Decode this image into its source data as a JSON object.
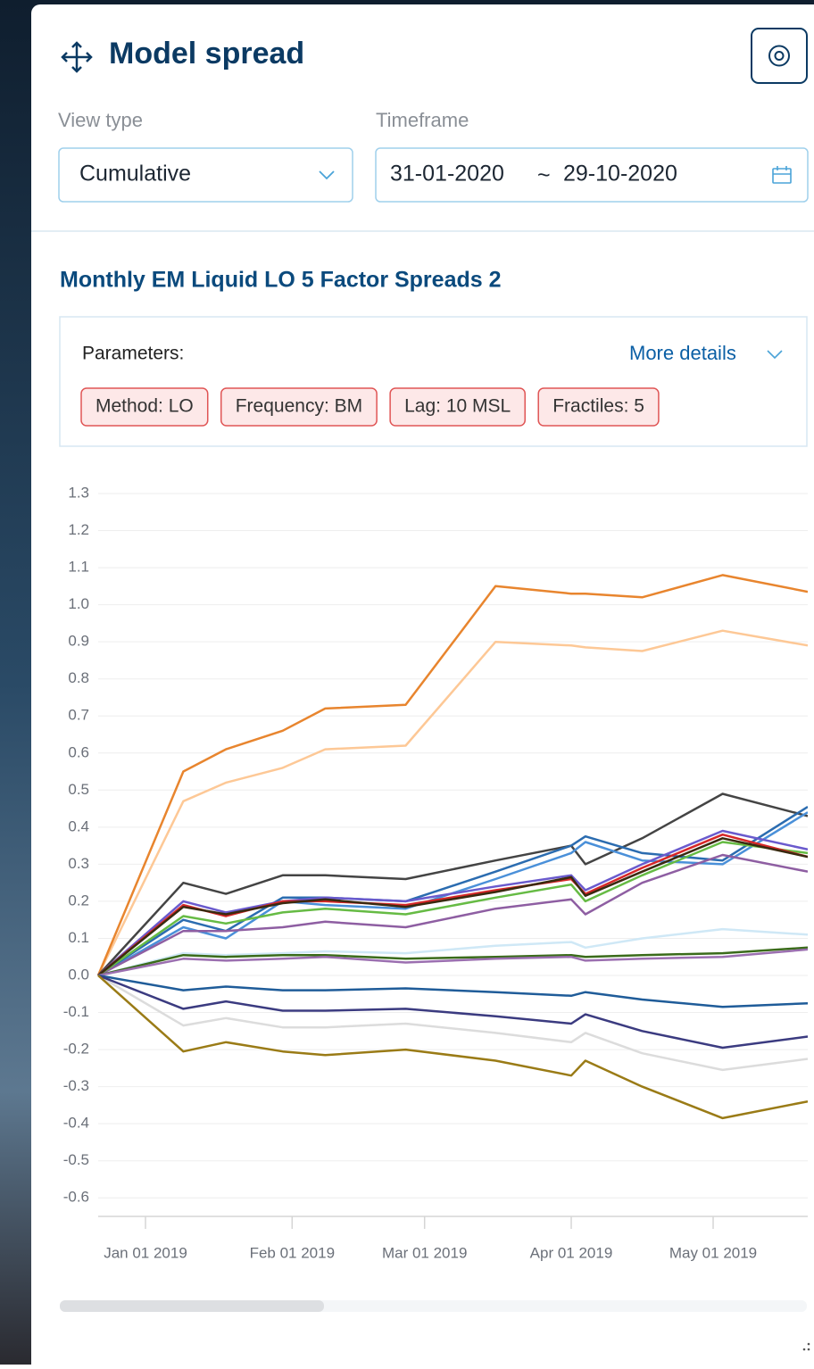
{
  "header": {
    "title": "Model spread"
  },
  "filters": {
    "view_type_label": "View type",
    "view_type_value": "Cumulative",
    "timeframe_label": "Timeframe",
    "start_date": "31-01-2020",
    "separator": "~",
    "end_date": "29-10-2020"
  },
  "parameters": {
    "label": "Parameters:",
    "more_details": "More details",
    "chips": [
      "Method: LO",
      "Frequency: BM",
      "Lag: 10 MSL",
      "Fractiles: 5"
    ]
  },
  "chart_data": {
    "type": "line",
    "title": "Monthly EM Liquid LO 5 Factor Spreads 2",
    "x": [
      "2018-12-22",
      "2019-01-09",
      "2019-01-18",
      "2019-01-30",
      "2019-02-08",
      "2019-02-25",
      "2019-03-16",
      "2019-04-01",
      "2019-04-04",
      "2019-04-16",
      "2019-05-03",
      "2019-05-21"
    ],
    "xlim": [
      "2018-12-22",
      "2019-05-21"
    ],
    "xticks": [
      {
        "value": "2019-01-01",
        "label": "Jan 01 2019"
      },
      {
        "value": "2019-02-01",
        "label": "Feb 01 2019"
      },
      {
        "value": "2019-03-01",
        "label": "Mar 01 2019"
      },
      {
        "value": "2019-04-01",
        "label": "Apr 01 2019"
      },
      {
        "value": "2019-05-01",
        "label": "May 01 2019"
      }
    ],
    "ylim": [
      -0.65,
      1.3
    ],
    "yticks": [
      1.3,
      1.2,
      1.1,
      {
        "value": 1,
        "label": "1.0"
      },
      0.9,
      0.8,
      0.7,
      0.6,
      0.5,
      0.4,
      0.3,
      0.2,
      0.1,
      {
        "value": 0,
        "label": "0.0"
      },
      -0.1,
      -0.2,
      -0.3,
      -0.4,
      -0.5,
      -0.6
    ],
    "grid": true,
    "series": [
      {
        "color": "#dcdcdc",
        "values": [
          0,
          -0.135,
          -0.115,
          -0.14,
          -0.14,
          -0.13,
          -0.155,
          -0.18,
          -0.155,
          -0.21,
          -0.255,
          -0.225
        ]
      },
      {
        "color": "#cfe8f6",
        "values": [
          0,
          0.06,
          0.055,
          0.06,
          0.065,
          0.06,
          0.08,
          0.09,
          0.075,
          0.1,
          0.125,
          0.11
        ]
      },
      {
        "color": "#fdc896",
        "values": [
          0,
          0.47,
          0.52,
          0.56,
          0.61,
          0.62,
          0.9,
          0.89,
          0.885,
          0.875,
          0.93,
          0.89
        ]
      },
      {
        "color": "#e8852e",
        "values": [
          0,
          0.55,
          0.61,
          0.66,
          0.72,
          0.73,
          1.05,
          1.03,
          1.03,
          1.02,
          1.08,
          1.035
        ]
      },
      {
        "color": "#444444",
        "values": [
          0,
          0.25,
          0.22,
          0.27,
          0.27,
          0.26,
          0.31,
          0.35,
          0.3,
          0.37,
          0.49,
          0.43
        ]
      },
      {
        "color": "#4a90d9",
        "values": [
          0,
          0.13,
          0.1,
          0.2,
          0.19,
          0.18,
          0.26,
          0.33,
          0.36,
          0.31,
          0.3,
          0.44
        ]
      },
      {
        "color": "#2b6cb0",
        "values": [
          0,
          0.15,
          0.12,
          0.21,
          0.21,
          0.2,
          0.28,
          0.35,
          0.375,
          0.33,
          0.31,
          0.455
        ]
      },
      {
        "color": "#8e5ea2",
        "values": [
          0,
          0.12,
          0.12,
          0.13,
          0.145,
          0.13,
          0.18,
          0.205,
          0.165,
          0.25,
          0.325,
          0.28
        ]
      },
      {
        "color": "#66bb44",
        "values": [
          0,
          0.16,
          0.14,
          0.17,
          0.18,
          0.165,
          0.21,
          0.245,
          0.2,
          0.27,
          0.36,
          0.33
        ]
      },
      {
        "color": "#6a5acd",
        "values": [
          0,
          0.2,
          0.17,
          0.2,
          0.21,
          0.2,
          0.24,
          0.27,
          0.23,
          0.3,
          0.39,
          0.34
        ]
      },
      {
        "color": "#d62728",
        "values": [
          0,
          0.19,
          0.16,
          0.2,
          0.2,
          0.19,
          0.23,
          0.26,
          0.22,
          0.29,
          0.38,
          0.32
        ]
      },
      {
        "color": "#3a2a10",
        "values": [
          0,
          0.185,
          0.165,
          0.195,
          0.205,
          0.185,
          0.225,
          0.265,
          0.215,
          0.28,
          0.37,
          0.32
        ]
      },
      {
        "color": "#3a6b1a",
        "values": [
          0,
          0.055,
          0.05,
          0.055,
          0.055,
          0.045,
          0.05,
          0.055,
          0.05,
          0.055,
          0.06,
          0.075
        ]
      },
      {
        "color": "#9b6fb0",
        "values": [
          0,
          0.045,
          0.04,
          0.045,
          0.05,
          0.035,
          0.045,
          0.05,
          0.04,
          0.045,
          0.05,
          0.07
        ]
      },
      {
        "color": "#1f5c99",
        "values": [
          0,
          -0.04,
          -0.03,
          -0.04,
          -0.04,
          -0.035,
          -0.045,
          -0.055,
          -0.045,
          -0.065,
          -0.085,
          -0.075
        ]
      },
      {
        "color": "#3b3b80",
        "values": [
          0,
          -0.09,
          -0.07,
          -0.095,
          -0.095,
          -0.09,
          -0.11,
          -0.13,
          -0.105,
          -0.15,
          -0.195,
          -0.165
        ]
      },
      {
        "color": "#9a7b16",
        "values": [
          0,
          -0.205,
          -0.18,
          -0.205,
          -0.215,
          -0.2,
          -0.23,
          -0.27,
          -0.23,
          -0.3,
          -0.385,
          -0.34
        ]
      }
    ]
  }
}
